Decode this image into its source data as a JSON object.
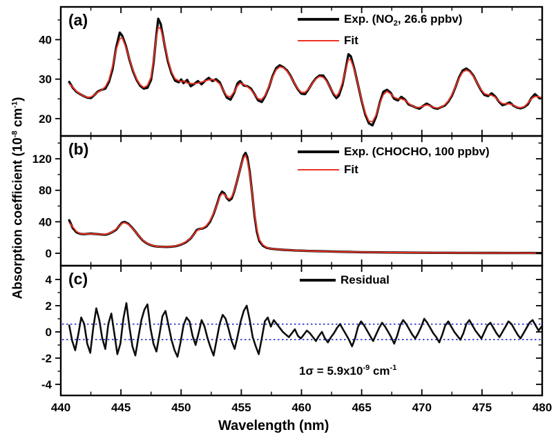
{
  "labels": {
    "panel_a_letter": "(a)",
    "panel_b_letter": "(b)",
    "panel_c_letter": "(c)",
    "x_title": "Wavelength (nm)",
    "y_title": {
      "pre": "Absorption coefficient (10",
      "sup1": "-8",
      "mid": " cm",
      "sup2": "-1",
      "post": ")"
    },
    "legend_a": {
      "exp_pre": "Exp. (NO",
      "exp_sub": "2",
      "exp_post": ", 26.6 ppbv)",
      "fit": "Fit"
    },
    "legend_b": {
      "exp": "Exp. (CHOCHO, 100 ppbv)",
      "fit": "Fit"
    },
    "legend_c": {
      "residual": "Residual"
    },
    "annotation": {
      "pre": "1σ = 5.9x10",
      "sup1": "-9",
      "mid": " cm",
      "sup2": "-1"
    }
  },
  "colors": {
    "exp": "#0d0d0d",
    "fit": "#ee3224",
    "sigma": "#2323cd",
    "axis": "#000000"
  },
  "chart_data": [
    {
      "panel": "a",
      "type": "line",
      "title": "",
      "xlabel": "Wavelength (nm)",
      "ylabel": "Absorption coefficient (10^-8 cm^-1)",
      "xlim": [
        440,
        480
      ],
      "ylim": [
        15.6,
        48.3
      ],
      "x_major_ticks": [
        440,
        445,
        450,
        455,
        460,
        465,
        470,
        475,
        480
      ],
      "x_minor_ticks": [
        442.5,
        447.5,
        452.5,
        457.5,
        462.5,
        467.5,
        472.5,
        477.5
      ],
      "y_major_ticks": [
        20,
        30,
        40
      ],
      "y_minor_ticks": [
        25,
        35,
        45
      ],
      "legend": [
        "Exp. (NO2, 26.6 ppbv)",
        "Fit"
      ],
      "has_fit": true,
      "series_name": "Exp. (NO2, 26.6 ppbv)",
      "points": [
        [
          440.7,
          29.3
        ],
        [
          441.0,
          27.8
        ],
        [
          441.3,
          26.8
        ],
        [
          441.6,
          26.2
        ],
        [
          441.9,
          25.7
        ],
        [
          442.2,
          25.3
        ],
        [
          442.5,
          25.2
        ],
        [
          442.8,
          26.0
        ],
        [
          443.1,
          26.9
        ],
        [
          443.4,
          27.3
        ],
        [
          443.7,
          27.6
        ],
        [
          444.0,
          29.3
        ],
        [
          444.3,
          32.5
        ],
        [
          444.6,
          38.0
        ],
        [
          444.9,
          41.8
        ],
        [
          445.1,
          41.0
        ],
        [
          445.4,
          38.5
        ],
        [
          445.7,
          35.0
        ],
        [
          446.0,
          32.0
        ],
        [
          446.3,
          29.8
        ],
        [
          446.6,
          28.3
        ],
        [
          446.9,
          27.6
        ],
        [
          447.2,
          27.8
        ],
        [
          447.5,
          29.8
        ],
        [
          447.7,
          34.0
        ],
        [
          447.9,
          40.0
        ],
        [
          448.1,
          45.3
        ],
        [
          448.3,
          44.0
        ],
        [
          448.6,
          39.0
        ],
        [
          448.9,
          34.5
        ],
        [
          449.2,
          31.5
        ],
        [
          449.5,
          29.6
        ],
        [
          449.8,
          29.2
        ],
        [
          450.0,
          29.9
        ],
        [
          450.2,
          29.0
        ],
        [
          450.5,
          29.8
        ],
        [
          450.8,
          28.2
        ],
        [
          451.1,
          28.8
        ],
        [
          451.4,
          29.5
        ],
        [
          451.7,
          28.7
        ],
        [
          452.0,
          29.6
        ],
        [
          452.3,
          30.3
        ],
        [
          452.6,
          29.5
        ],
        [
          452.9,
          30.0
        ],
        [
          453.2,
          29.2
        ],
        [
          453.5,
          27.2
        ],
        [
          453.8,
          25.3
        ],
        [
          454.1,
          24.8
        ],
        [
          454.4,
          26.5
        ],
        [
          454.7,
          29.0
        ],
        [
          454.9,
          29.5
        ],
        [
          455.2,
          28.4
        ],
        [
          455.5,
          28.2
        ],
        [
          455.8,
          27.6
        ],
        [
          456.1,
          26.2
        ],
        [
          456.4,
          24.6
        ],
        [
          456.7,
          24.2
        ],
        [
          457.0,
          25.8
        ],
        [
          457.3,
          28.0
        ],
        [
          457.6,
          30.8
        ],
        [
          457.9,
          32.8
        ],
        [
          458.2,
          33.5
        ],
        [
          458.5,
          33.0
        ],
        [
          458.8,
          32.2
        ],
        [
          459.1,
          30.8
        ],
        [
          459.4,
          29.0
        ],
        [
          459.7,
          27.4
        ],
        [
          460.0,
          26.3
        ],
        [
          460.3,
          26.2
        ],
        [
          460.6,
          27.5
        ],
        [
          460.9,
          29.0
        ],
        [
          461.2,
          30.2
        ],
        [
          461.5,
          30.9
        ],
        [
          461.8,
          30.9
        ],
        [
          462.1,
          29.6
        ],
        [
          462.4,
          27.8
        ],
        [
          462.7,
          26.0
        ],
        [
          462.9,
          25.2
        ],
        [
          463.1,
          25.8
        ],
        [
          463.4,
          28.5
        ],
        [
          463.7,
          33.0
        ],
        [
          463.9,
          36.3
        ],
        [
          464.1,
          35.8
        ],
        [
          464.4,
          32.5
        ],
        [
          464.7,
          28.5
        ],
        [
          465.0,
          24.5
        ],
        [
          465.3,
          21.0
        ],
        [
          465.6,
          18.8
        ],
        [
          465.9,
          18.3
        ],
        [
          466.2,
          20.5
        ],
        [
          466.5,
          24.0
        ],
        [
          466.8,
          26.8
        ],
        [
          467.1,
          27.3
        ],
        [
          467.4,
          26.6
        ],
        [
          467.7,
          25.0
        ],
        [
          468.0,
          24.6
        ],
        [
          468.3,
          25.5
        ],
        [
          468.6,
          24.8
        ],
        [
          468.9,
          23.6
        ],
        [
          469.2,
          23.2
        ],
        [
          469.5,
          22.8
        ],
        [
          469.8,
          22.5
        ],
        [
          470.1,
          23.2
        ],
        [
          470.4,
          23.8
        ],
        [
          470.7,
          23.3
        ],
        [
          471.0,
          22.7
        ],
        [
          471.3,
          22.5
        ],
        [
          471.6,
          22.9
        ],
        [
          471.9,
          23.3
        ],
        [
          472.2,
          24.3
        ],
        [
          472.5,
          25.8
        ],
        [
          472.8,
          28.0
        ],
        [
          473.1,
          30.5
        ],
        [
          473.4,
          32.2
        ],
        [
          473.7,
          32.7
        ],
        [
          474.0,
          32.0
        ],
        [
          474.3,
          30.8
        ],
        [
          474.6,
          29.0
        ],
        [
          474.9,
          27.3
        ],
        [
          475.2,
          26.0
        ],
        [
          475.5,
          25.7
        ],
        [
          475.8,
          26.4
        ],
        [
          476.1,
          25.6
        ],
        [
          476.4,
          24.3
        ],
        [
          476.7,
          23.4
        ],
        [
          477.0,
          23.7
        ],
        [
          477.3,
          24.1
        ],
        [
          477.6,
          23.3
        ],
        [
          477.9,
          22.8
        ],
        [
          478.2,
          22.6
        ],
        [
          478.5,
          22.9
        ],
        [
          478.8,
          23.6
        ],
        [
          479.1,
          25.2
        ],
        [
          479.4,
          26.2
        ],
        [
          479.7,
          25.4
        ],
        [
          480.0,
          25.1
        ]
      ]
    },
    {
      "panel": "b",
      "type": "line",
      "title": "",
      "xlabel": "Wavelength (nm)",
      "ylabel": "Absorption coefficient (10^-8 cm^-1)",
      "xlim": [
        440,
        480
      ],
      "ylim": [
        -15.8,
        149
      ],
      "x_major_ticks": [
        440,
        445,
        450,
        455,
        460,
        465,
        470,
        475,
        480
      ],
      "x_minor_ticks": [
        442.5,
        447.5,
        452.5,
        457.5,
        462.5,
        467.5,
        472.5,
        477.5
      ],
      "y_major_ticks": [
        0,
        40,
        80,
        120
      ],
      "y_minor_ticks": [
        20,
        60,
        100,
        140
      ],
      "legend": [
        "Exp. (CHOCHO, 100 ppbv)",
        "Fit"
      ],
      "has_fit": true,
      "series_name": "Exp. (CHOCHO, 100 ppbv)",
      "points": [
        [
          440.7,
          42.0
        ],
        [
          441.0,
          32.0
        ],
        [
          441.3,
          26.5
        ],
        [
          441.6,
          24.8
        ],
        [
          441.9,
          24.3
        ],
        [
          442.2,
          24.6
        ],
        [
          442.5,
          25.0
        ],
        [
          442.8,
          24.6
        ],
        [
          443.1,
          24.3
        ],
        [
          443.4,
          23.8
        ],
        [
          443.7,
          23.6
        ],
        [
          444.0,
          24.8
        ],
        [
          444.3,
          27.0
        ],
        [
          444.6,
          30.0
        ],
        [
          444.9,
          35.5
        ],
        [
          445.1,
          39.0
        ],
        [
          445.3,
          39.8
        ],
        [
          445.6,
          37.5
        ],
        [
          445.9,
          33.0
        ],
        [
          446.2,
          27.5
        ],
        [
          446.5,
          21.5
        ],
        [
          446.8,
          16.5
        ],
        [
          447.1,
          13.0
        ],
        [
          447.4,
          10.8
        ],
        [
          447.7,
          9.3
        ],
        [
          448.0,
          8.6
        ],
        [
          448.4,
          8.2
        ],
        [
          448.8,
          8.0
        ],
        [
          449.2,
          8.4
        ],
        [
          449.6,
          9.2
        ],
        [
          450.0,
          11.0
        ],
        [
          450.4,
          14.0
        ],
        [
          450.8,
          19.0
        ],
        [
          451.1,
          25.0
        ],
        [
          451.3,
          29.5
        ],
        [
          451.5,
          30.8
        ],
        [
          451.8,
          31.5
        ],
        [
          452.1,
          34.0
        ],
        [
          452.4,
          40.0
        ],
        [
          452.7,
          50.0
        ],
        [
          453.0,
          63.0
        ],
        [
          453.2,
          73.0
        ],
        [
          453.4,
          78.3
        ],
        [
          453.6,
          76.0
        ],
        [
          453.8,
          70.0
        ],
        [
          454.0,
          67.0
        ],
        [
          454.2,
          69.5
        ],
        [
          454.4,
          78.0
        ],
        [
          454.6,
          89.0
        ],
        [
          454.8,
          101.0
        ],
        [
          455.0,
          113.0
        ],
        [
          455.2,
          124.0
        ],
        [
          455.35,
          127.5
        ],
        [
          455.5,
          122.0
        ],
        [
          455.7,
          103.0
        ],
        [
          455.9,
          76.0
        ],
        [
          456.1,
          48.0
        ],
        [
          456.3,
          27.0
        ],
        [
          456.5,
          15.5
        ],
        [
          456.8,
          9.5
        ],
        [
          457.1,
          7.0
        ],
        [
          457.5,
          5.8
        ],
        [
          458.0,
          5.0
        ],
        [
          458.5,
          4.4
        ],
        [
          459.0,
          4.0
        ],
        [
          459.5,
          3.6
        ],
        [
          460.0,
          3.3
        ],
        [
          460.5,
          3.0
        ],
        [
          461.0,
          2.8
        ],
        [
          461.5,
          2.6
        ],
        [
          462.0,
          2.4
        ],
        [
          463.0,
          2.0
        ],
        [
          464.0,
          1.7
        ],
        [
          465.0,
          1.4
        ],
        [
          466.0,
          1.2
        ],
        [
          467.0,
          1.0
        ],
        [
          468.0,
          0.9
        ],
        [
          469.0,
          0.8
        ],
        [
          470.0,
          0.7
        ],
        [
          471.0,
          0.6
        ],
        [
          472.0,
          0.6
        ],
        [
          473.0,
          0.5
        ],
        [
          474.0,
          0.5
        ],
        [
          475.0,
          0.4
        ],
        [
          476.0,
          0.4
        ],
        [
          477.0,
          0.3
        ],
        [
          478.0,
          0.3
        ],
        [
          479.0,
          0.3
        ],
        [
          480.0,
          0.2
        ]
      ]
    },
    {
      "panel": "c",
      "type": "line",
      "title": "",
      "xlabel": "Wavelength (nm)",
      "ylabel": "Residual (10^-8 cm^-1)",
      "xlim": [
        440,
        480
      ],
      "ylim": [
        -4.85,
        5.05
      ],
      "x_major_ticks": [
        440,
        445,
        450,
        455,
        460,
        465,
        470,
        475,
        480
      ],
      "x_minor_ticks": [
        442.5,
        447.5,
        452.5,
        457.5,
        462.5,
        467.5,
        472.5,
        477.5
      ],
      "y_major_ticks": [
        -4,
        -2,
        0,
        2,
        4
      ],
      "y_minor_ticks": [
        -3,
        -1,
        1,
        3
      ],
      "legend": [
        "Residual"
      ],
      "has_fit": false,
      "series_name": "Residual",
      "sigma_value_1e-8": 0.59,
      "sigma_lines": [
        0.59,
        -0.59
      ],
      "x_start": 440.7,
      "x_step": 0.25,
      "values": [
        0.5,
        -0.7,
        -1.4,
        -0.2,
        1.1,
        0.6,
        -0.9,
        -1.6,
        0.3,
        1.8,
        0.9,
        -0.5,
        -1.3,
        0.6,
        1.4,
        -0.1,
        -1.7,
        -0.9,
        1.0,
        2.2,
        0.4,
        -1.1,
        -1.8,
        -0.4,
        0.9,
        1.7,
        2.1,
        0.3,
        -0.9,
        -1.5,
        -0.2,
        1.2,
        1.6,
        0.5,
        -0.6,
        -1.4,
        -1.9,
        -0.8,
        0.5,
        1.1,
        0.8,
        -0.3,
        -1.0,
        -0.1,
        0.9,
        0.4,
        -0.5,
        -1.2,
        -1.8,
        -0.6,
        0.6,
        1.3,
        1.0,
        0.2,
        -0.7,
        -1.3,
        -0.3,
        0.8,
        1.6,
        2.0,
        0.9,
        -0.4,
        -1.1,
        -1.7,
        -0.5,
        0.8,
        1.1,
        0.4,
        0.9,
        0.6,
        0.3,
        0.0,
        -0.2,
        -0.4,
        -0.1,
        0.2,
        -0.3,
        -0.5,
        -0.2,
        0.1,
        -0.1,
        -0.4,
        -0.7,
        -0.3,
        0.0,
        -0.5,
        -0.8,
        -0.4,
        -0.1,
        0.3,
        0.6,
        0.2,
        -0.2,
        -0.6,
        -1.1,
        -0.5,
        0.4,
        0.8,
        0.5,
        0.1,
        -0.3,
        -0.7,
        -0.2,
        0.3,
        0.7,
        0.4,
        0.0,
        -0.4,
        -0.9,
        -0.3,
        0.5,
        0.9,
        0.6,
        0.2,
        -0.2,
        -0.5,
        -0.1,
        0.4,
        1.0,
        0.7,
        0.3,
        -0.1,
        -0.4,
        -0.8,
        -0.2,
        0.5,
        0.8,
        0.4,
        0.0,
        -0.3,
        -0.6,
        -0.1,
        0.6,
        0.9,
        0.5,
        0.1,
        -0.2,
        -0.5,
        0.0,
        0.5,
        0.7,
        0.3,
        -0.1,
        -0.4,
        0.0,
        0.4,
        0.8,
        0.6,
        0.2,
        -0.2,
        -0.5,
        -0.1,
        0.3,
        0.7,
        0.9,
        0.5,
        0.1,
        0.4
      ]
    }
  ]
}
